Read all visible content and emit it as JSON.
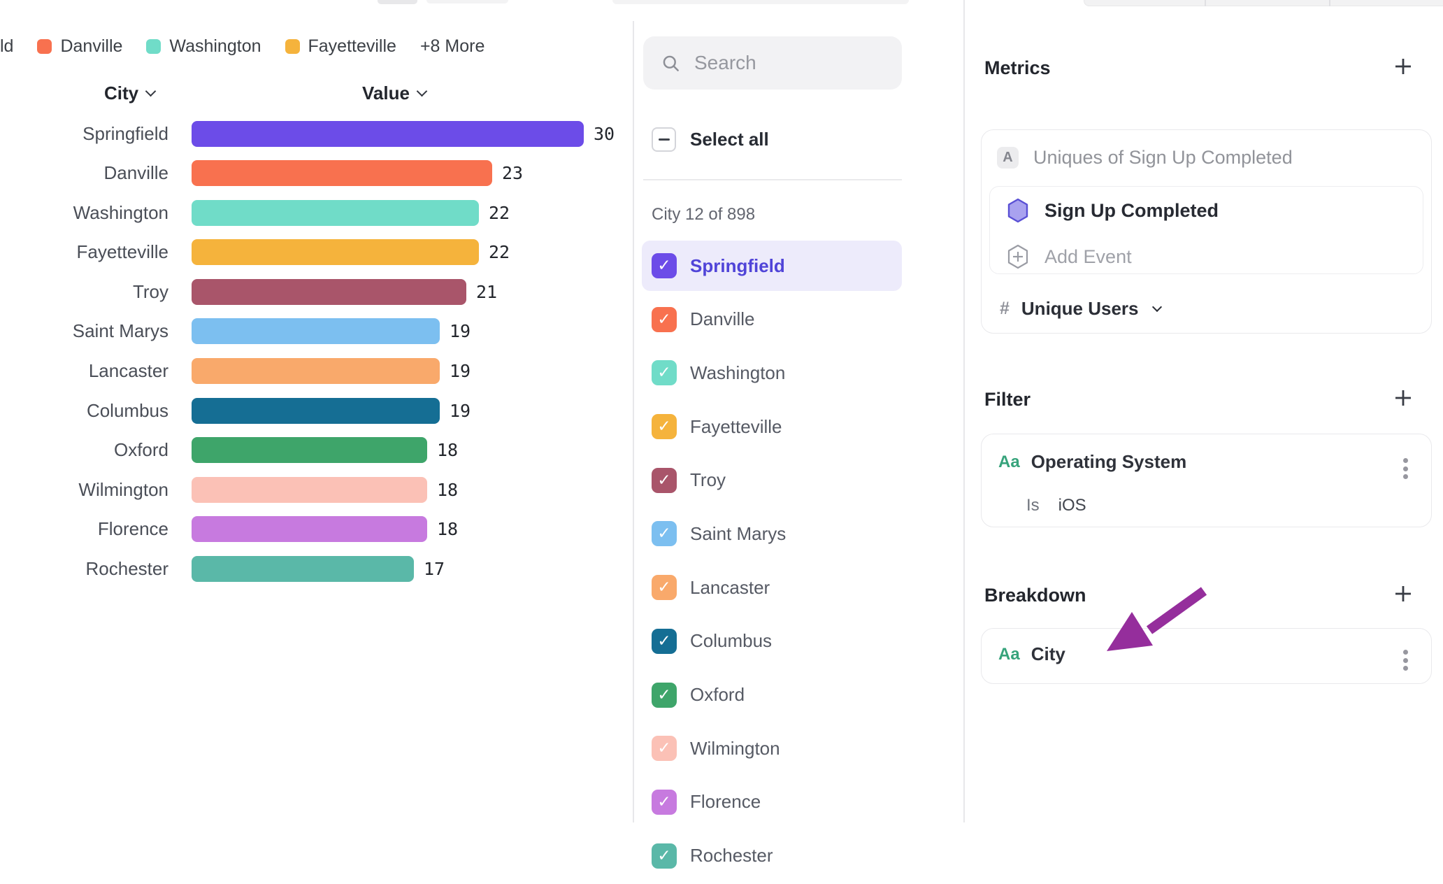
{
  "legend": {
    "truncated_label": "ld",
    "items": [
      {
        "label": "Danville",
        "color": "#F8714F"
      },
      {
        "label": "Washington",
        "color": "#70DCC8"
      },
      {
        "label": "Fayetteville",
        "color": "#F5B33C"
      }
    ],
    "more_label": "+8 More"
  },
  "chart_data": {
    "type": "bar",
    "orientation": "horizontal",
    "column_headers": {
      "category": "City",
      "value": "Value"
    },
    "categories": [
      "Springfield",
      "Danville",
      "Washington",
      "Fayetteville",
      "Troy",
      "Saint Marys",
      "Lancaster",
      "Columbus",
      "Oxford",
      "Wilmington",
      "Florence",
      "Rochester"
    ],
    "values": [
      30,
      23,
      22,
      22,
      21,
      19,
      19,
      19,
      18,
      18,
      18,
      17
    ],
    "colors": [
      "#6C4CE8",
      "#F8714F",
      "#70DCC8",
      "#F5B33C",
      "#A9556A",
      "#7CBFF0",
      "#F9A96B",
      "#156E94",
      "#3EA56A",
      "#FBC1B6",
      "#C77ADF",
      "#5AB8A8"
    ],
    "xlim": [
      0,
      30
    ],
    "value_labels_shown": true,
    "grid": false,
    "legend_position": "top"
  },
  "selector_panel": {
    "search_placeholder": "Search",
    "select_all_label": "Select all",
    "select_all_state": "indeterminate",
    "count_label": "City 12 of 898",
    "items": [
      {
        "label": "Springfield",
        "color": "#6C4CE8",
        "checked": true,
        "selected": true
      },
      {
        "label": "Danville",
        "color": "#F8714F",
        "checked": true,
        "selected": false
      },
      {
        "label": "Washington",
        "color": "#70DCC8",
        "checked": true,
        "selected": false
      },
      {
        "label": "Fayetteville",
        "color": "#F5B33C",
        "checked": true,
        "selected": false
      },
      {
        "label": "Troy",
        "color": "#A9556A",
        "checked": true,
        "selected": false
      },
      {
        "label": "Saint Marys",
        "color": "#7CBFF0",
        "checked": true,
        "selected": false
      },
      {
        "label": "Lancaster",
        "color": "#F9A96B",
        "checked": true,
        "selected": false
      },
      {
        "label": "Columbus",
        "color": "#156E94",
        "checked": true,
        "selected": false
      },
      {
        "label": "Oxford",
        "color": "#3EA56A",
        "checked": true,
        "selected": false
      },
      {
        "label": "Wilmington",
        "color": "#FBC1B6",
        "checked": true,
        "selected": false
      },
      {
        "label": "Florence",
        "color": "#C77ADF",
        "checked": true,
        "selected": false
      },
      {
        "label": "Rochester",
        "color": "#5AB8A8",
        "checked": true,
        "selected": false
      }
    ]
  },
  "inspector": {
    "metrics": {
      "heading": "Metrics",
      "metric_badge": "A",
      "metric_label": "Uniques of Sign Up Completed",
      "event_name": "Sign Up Completed",
      "add_event_label": "Add Event",
      "measure_prefix": "#",
      "measure_label": "Unique Users"
    },
    "filter": {
      "heading": "Filter",
      "property_badge": "Aa",
      "property_name": "Operating System",
      "operator": "Is",
      "value": "iOS"
    },
    "breakdown": {
      "heading": "Breakdown",
      "property_badge": "Aa",
      "property_name": "City"
    }
  },
  "icons": {
    "check": "✓",
    "search": "magnifier",
    "add": "plus",
    "menu": "kebab",
    "dropdown": "chevron-down",
    "event": "hexagon",
    "measure": "hash"
  },
  "annotation": {
    "arrow_color": "#952E9C"
  }
}
